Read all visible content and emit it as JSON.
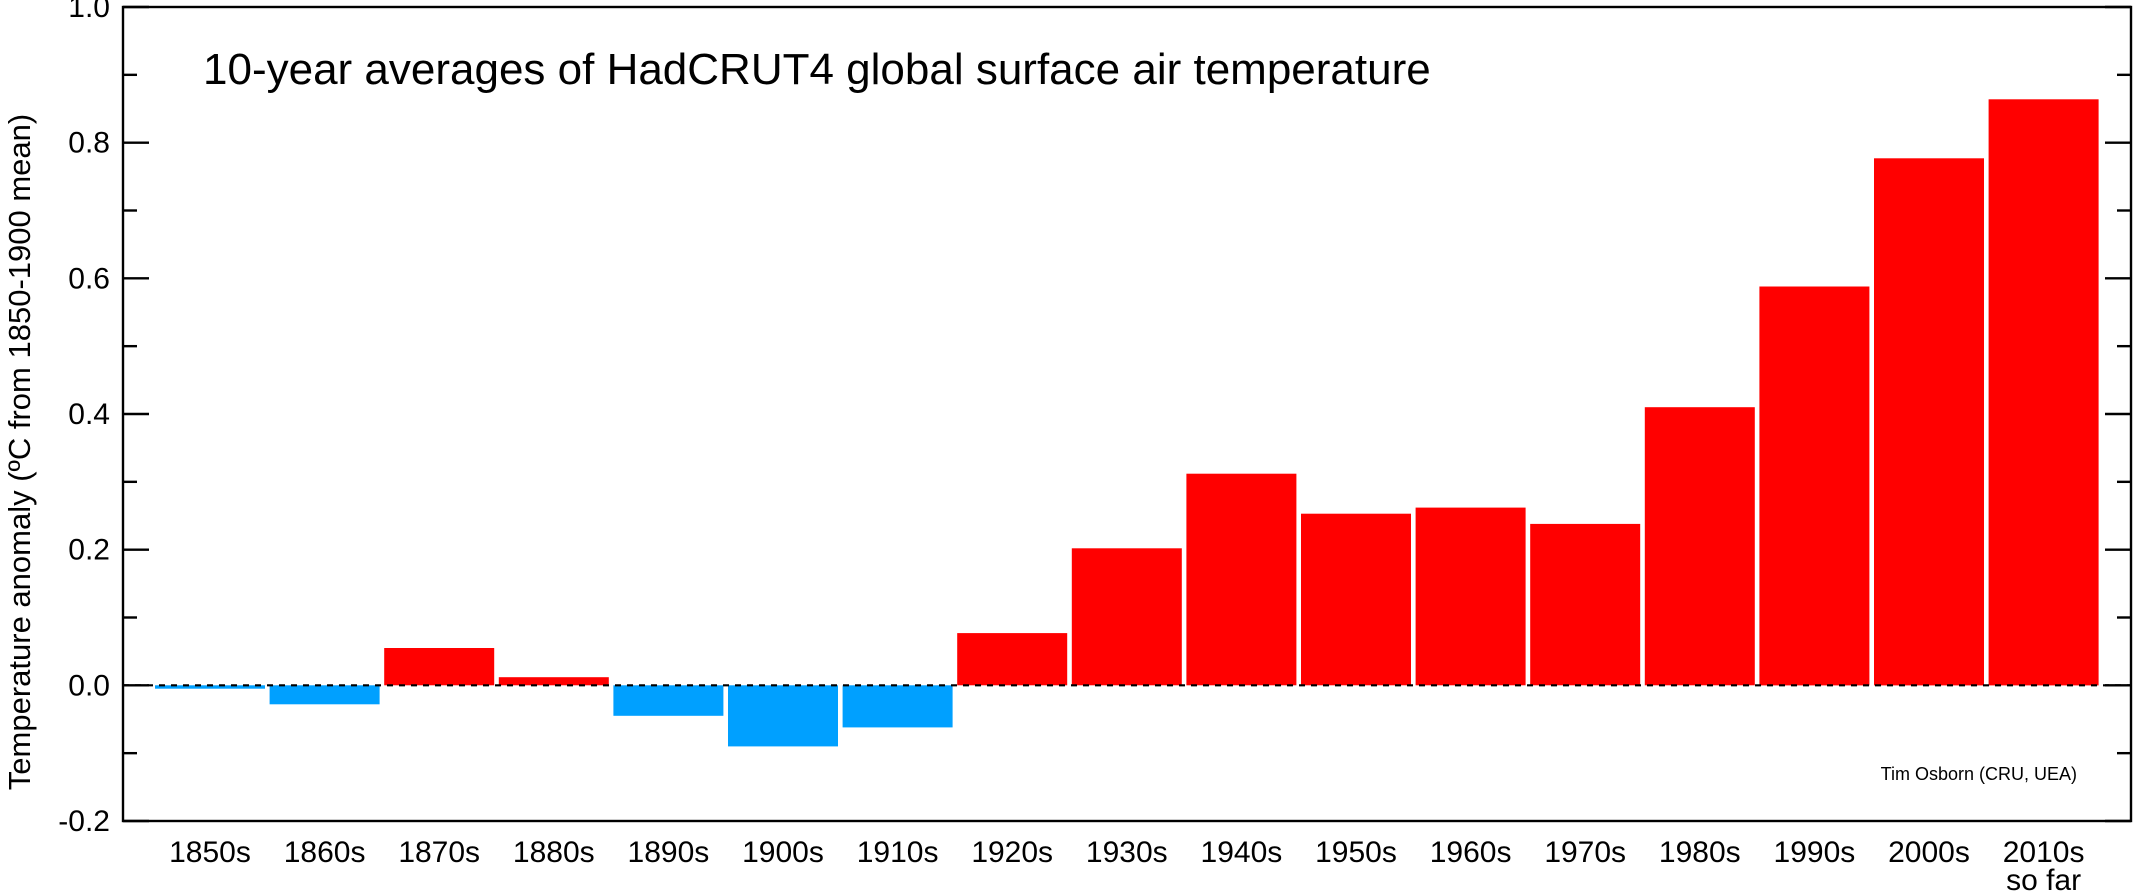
{
  "chart_data": {
    "type": "bar",
    "title": "10-year averages of HadCRUT4 global surface air temperature",
    "xlabel": "",
    "ylabel": "Temperature anomaly (ºC from 1850-1900 mean)",
    "credit": "Tim Osborn (CRU, UEA)",
    "categories": [
      "1850s",
      "1860s",
      "1870s",
      "1880s",
      "1890s",
      "1900s",
      "1910s",
      "1920s",
      "1930s",
      "1940s",
      "1950s",
      "1960s",
      "1970s",
      "1980s",
      "1990s",
      "2000s",
      "2010s"
    ],
    "category_sublabels": [
      "",
      "",
      "",
      "",
      "",
      "",
      "",
      "",
      "",
      "",
      "",
      "",
      "",
      "",
      "",
      "",
      "so far"
    ],
    "values": [
      -0.005,
      -0.028,
      0.055,
      0.012,
      -0.045,
      -0.09,
      -0.062,
      0.077,
      0.202,
      0.312,
      0.253,
      0.262,
      0.238,
      0.41,
      0.588,
      0.777,
      0.864
    ],
    "ylim": [
      -0.2,
      1.0
    ],
    "y_tick_labels": [
      "-0.2",
      "0.0",
      "0.2",
      "0.4",
      "0.6",
      "0.8",
      "1.0"
    ],
    "zero_line": "dashed",
    "colors": {
      "positive": "#ff0000",
      "negative": "#00a0ff",
      "axis": "#000000",
      "background": "#ffffff"
    }
  }
}
